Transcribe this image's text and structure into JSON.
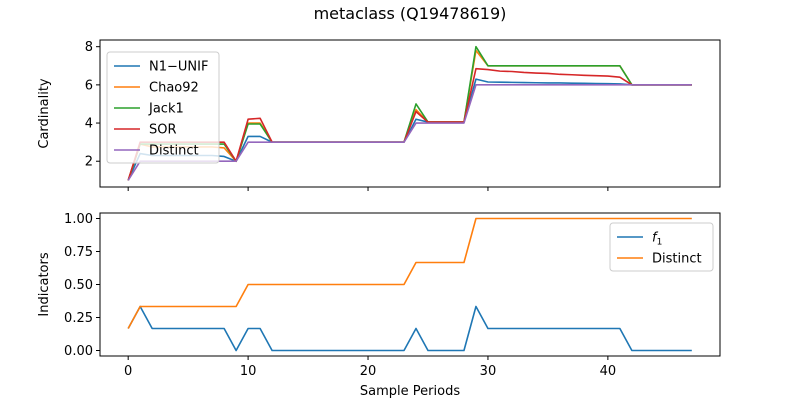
{
  "figure": {
    "title": "metaclass (Q19478619)"
  },
  "chart_data": [
    {
      "type": "line",
      "ylabel": "Cardinality",
      "xlabel": "",
      "xlim": [
        -2.35,
        49.35
      ],
      "ylim": [
        0.65,
        8.35
      ],
      "xticks": [
        0,
        10,
        20,
        30,
        40
      ],
      "xtick_labels_shown": false,
      "yticks": [
        2,
        4,
        6,
        8
      ],
      "ytick_labels": [
        "2",
        "4",
        "6",
        "8"
      ],
      "legend_position": "upper-left",
      "x": [
        0,
        1,
        2,
        3,
        4,
        5,
        6,
        7,
        8,
        9,
        10,
        11,
        12,
        13,
        14,
        15,
        16,
        17,
        18,
        19,
        20,
        21,
        22,
        23,
        24,
        25,
        26,
        27,
        28,
        29,
        30,
        31,
        32,
        33,
        34,
        35,
        36,
        37,
        38,
        39,
        40,
        41,
        42,
        43,
        44,
        45,
        46,
        47
      ],
      "series": [
        {
          "name": "N1−UNIF",
          "color": "#1f77b4",
          "values": [
            1,
            2.4,
            2.3,
            2.3,
            2.3,
            2.3,
            2.3,
            2.3,
            2.25,
            2,
            3.3,
            3.3,
            3,
            3,
            3,
            3,
            3,
            3,
            3,
            3,
            3,
            3,
            3,
            3,
            4.2,
            4.05,
            4.05,
            4.05,
            4.05,
            6.3,
            6.15,
            6.14,
            6.13,
            6.12,
            6.11,
            6.1,
            6.1,
            6.09,
            6.08,
            6.07,
            6.06,
            6.05,
            6,
            6,
            6,
            6,
            6,
            6
          ]
        },
        {
          "name": "Chao92",
          "color": "#ff7f0e",
          "values": [
            1,
            2.9,
            2.75,
            2.75,
            2.75,
            2.75,
            2.75,
            2.75,
            2.7,
            2,
            4,
            4,
            3,
            3,
            3,
            3,
            3,
            3,
            3,
            3,
            3,
            3,
            3,
            3,
            4.7,
            4.05,
            4.05,
            4.05,
            4.05,
            7.8,
            7,
            7,
            7,
            7,
            7,
            7,
            7,
            7,
            7,
            7,
            7,
            7,
            6,
            6,
            6,
            6,
            6,
            6
          ]
        },
        {
          "name": "Jack1",
          "color": "#2ca02c",
          "values": [
            1,
            2.9,
            2.9,
            2.9,
            2.9,
            2.9,
            2.9,
            2.9,
            2.9,
            2,
            3.95,
            3.95,
            3,
            3,
            3,
            3,
            3,
            3,
            3,
            3,
            3,
            3,
            3,
            3,
            5,
            4.05,
            4.05,
            4.05,
            4.05,
            8,
            7,
            7,
            7,
            7,
            7,
            7,
            7,
            7,
            7,
            7,
            7,
            7,
            6,
            6,
            6,
            6,
            6,
            6
          ]
        },
        {
          "name": "SOR",
          "color": "#d62728",
          "values": [
            1,
            3,
            3,
            3,
            3,
            3,
            3,
            3,
            3,
            2,
            4.2,
            4.25,
            3,
            3,
            3,
            3,
            3,
            3,
            3,
            3,
            3,
            3,
            3,
            3,
            4.6,
            4.05,
            4.05,
            4.05,
            4.05,
            6.85,
            6.8,
            6.72,
            6.7,
            6.65,
            6.62,
            6.6,
            6.55,
            6.53,
            6.5,
            6.48,
            6.46,
            6.4,
            6,
            6,
            6,
            6,
            6,
            6
          ]
        },
        {
          "name": "Distinct",
          "color": "#9467bd",
          "values": [
            1,
            2,
            2,
            2,
            2,
            2,
            2,
            2,
            2,
            2,
            3,
            3,
            3,
            3,
            3,
            3,
            3,
            3,
            3,
            3,
            3,
            3,
            3,
            3,
            4,
            4,
            4,
            4,
            4,
            6,
            6,
            6,
            6,
            6,
            6,
            6,
            6,
            6,
            6,
            6,
            6,
            6,
            6,
            6,
            6,
            6,
            6,
            6
          ]
        }
      ]
    },
    {
      "type": "line",
      "ylabel": "Indicators",
      "xlabel": "Sample Periods",
      "xlim": [
        -2.35,
        49.35
      ],
      "ylim": [
        -0.0417,
        1.0417
      ],
      "xticks": [
        0,
        10,
        20,
        30,
        40
      ],
      "xtick_labels": [
        "0",
        "10",
        "20",
        "30",
        "40"
      ],
      "yticks": [
        0,
        0.25,
        0.5,
        0.75,
        1.0
      ],
      "ytick_labels": [
        "0.00",
        "0.25",
        "0.50",
        "0.75",
        "1.00"
      ],
      "legend_position": "upper-right",
      "x": [
        0,
        1,
        2,
        3,
        4,
        5,
        6,
        7,
        8,
        9,
        10,
        11,
        12,
        13,
        14,
        15,
        16,
        17,
        18,
        19,
        20,
        21,
        22,
        23,
        24,
        25,
        26,
        27,
        28,
        29,
        30,
        31,
        32,
        33,
        34,
        35,
        36,
        37,
        38,
        39,
        40,
        41,
        42,
        43,
        44,
        45,
        46,
        47
      ],
      "series": [
        {
          "name": "f",
          "name_subscript": "1",
          "color": "#1f77b4",
          "values": [
            0.1667,
            0.3333,
            0.1667,
            0.1667,
            0.1667,
            0.1667,
            0.1667,
            0.1667,
            0.1667,
            0,
            0.1667,
            0.1667,
            0,
            0,
            0,
            0,
            0,
            0,
            0,
            0,
            0,
            0,
            0,
            0,
            0.1667,
            0,
            0,
            0,
            0,
            0.3333,
            0.1667,
            0.1667,
            0.1667,
            0.1667,
            0.1667,
            0.1667,
            0.1667,
            0.1667,
            0.1667,
            0.1667,
            0.1667,
            0.1667,
            0,
            0,
            0,
            0,
            0,
            0
          ]
        },
        {
          "name": "Distinct",
          "color": "#ff7f0e",
          "values": [
            0.1667,
            0.3333,
            0.3333,
            0.3333,
            0.3333,
            0.3333,
            0.3333,
            0.3333,
            0.3333,
            0.3333,
            0.5,
            0.5,
            0.5,
            0.5,
            0.5,
            0.5,
            0.5,
            0.5,
            0.5,
            0.5,
            0.5,
            0.5,
            0.5,
            0.5,
            0.6667,
            0.6667,
            0.6667,
            0.6667,
            0.6667,
            1,
            1,
            1,
            1,
            1,
            1,
            1,
            1,
            1,
            1,
            1,
            1,
            1,
            1,
            1,
            1,
            1,
            1,
            1
          ]
        }
      ]
    }
  ]
}
